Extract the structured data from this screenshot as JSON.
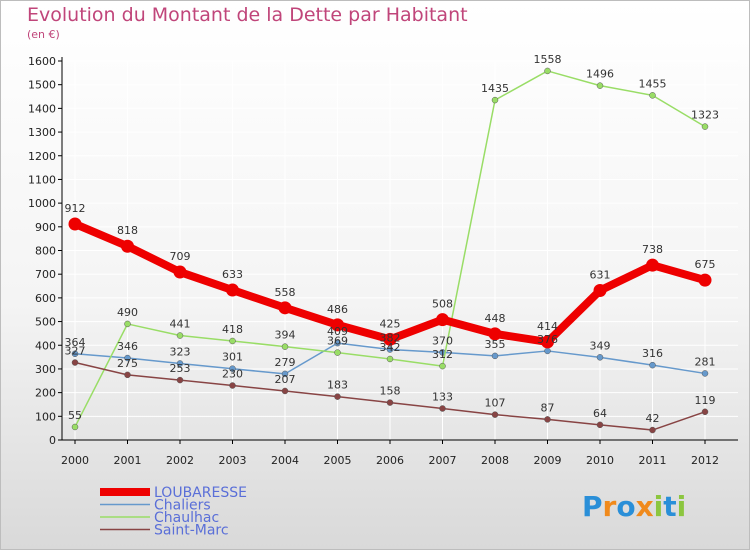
{
  "chart_data": {
    "type": "line",
    "title": "Evolution du Montant de la Dette par Habitant",
    "unit_label": "(en €)",
    "x": [
      "2000",
      "2001",
      "2002",
      "2003",
      "2004",
      "2005",
      "2006",
      "2007",
      "2008",
      "2009",
      "2010",
      "2011",
      "2012"
    ],
    "ylim": [
      0,
      1600
    ],
    "yticks": [
      0,
      100,
      200,
      300,
      400,
      500,
      600,
      700,
      800,
      900,
      1000,
      1100,
      1200,
      1300,
      1400,
      1500,
      1600
    ],
    "grid": true,
    "legend_position": "bottom-left",
    "series": [
      {
        "name": "LOUBARESSE",
        "color": "#ee0000",
        "width": 8,
        "values": [
          912,
          818,
          709,
          633,
          558,
          486,
          425,
          508,
          448,
          414,
          631,
          738,
          675
        ],
        "labels": [
          "912",
          "818",
          "709",
          "633",
          "558",
          "486",
          "425",
          "508",
          "448",
          "414",
          "631",
          "738",
          "675"
        ]
      },
      {
        "name": "Chaliers",
        "color": "#6699cc",
        "width": 1.5,
        "values": [
          364,
          346,
          323,
          301,
          279,
          409,
          382,
          370,
          355,
          376,
          349,
          316,
          281
        ],
        "labels": [
          "364",
          "346",
          "323",
          "301",
          "279",
          "409",
          "382",
          "370",
          "355",
          "376",
          "349",
          "316",
          "281"
        ]
      },
      {
        "name": "Chaulhac",
        "color": "#99dd66",
        "width": 1.5,
        "values": [
          55,
          490,
          441,
          418,
          394,
          369,
          342,
          312,
          1435,
          1558,
          1496,
          1455,
          1323
        ],
        "labels": [
          "55",
          "490",
          "441",
          "418",
          "394",
          "369",
          "342",
          "312",
          "1435",
          "1558",
          "1496",
          "1455",
          "1323"
        ]
      },
      {
        "name": "Saint-Marc",
        "color": "#884444",
        "width": 1.5,
        "values": [
          327,
          275,
          253,
          230,
          207,
          183,
          158,
          133,
          107,
          87,
          64,
          42,
          119
        ],
        "labels": [
          "327",
          "275",
          "253",
          "230",
          "207",
          "183",
          "158",
          "133",
          "107",
          "87",
          "64",
          "42",
          "119"
        ]
      }
    ]
  },
  "logo": {
    "text": "Proxiti",
    "letters": [
      "P",
      "r",
      "o",
      "x",
      "i",
      "t",
      "i"
    ],
    "colors": [
      "#2a8fd8",
      "#f08a1c",
      "#2a8fd8",
      "#f08a1c",
      "#8cc63f",
      "#2a8fd8",
      "#8cc63f"
    ]
  }
}
